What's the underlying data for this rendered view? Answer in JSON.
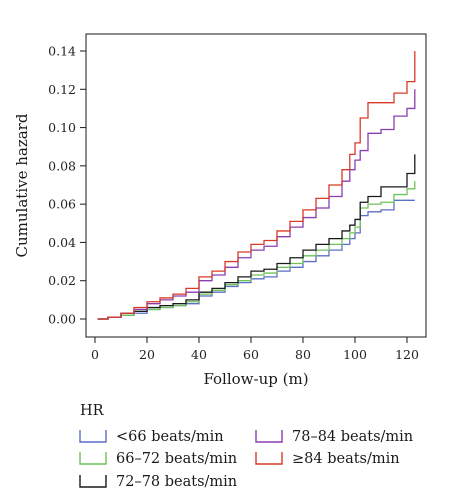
{
  "chart_data": {
    "type": "line",
    "step": true,
    "xlabel": "Follow-up (m)",
    "ylabel": "Cumulative hazard",
    "xlim": [
      0,
      125
    ],
    "ylim": [
      0,
      0.14
    ],
    "xticks": [
      0,
      20,
      40,
      60,
      80,
      100,
      120
    ],
    "yticks": [
      0.0,
      0.02,
      0.04,
      0.06,
      0.08,
      0.1,
      0.12,
      0.14
    ],
    "ytick_labels": [
      "0.00",
      "0.02",
      "0.04",
      "0.06",
      "0.08",
      "0.10",
      "0.12",
      "0.14"
    ],
    "grid": false,
    "legend": {
      "title": "HR",
      "placement": "bottom"
    },
    "series": [
      {
        "name": "<66 beats/min",
        "color": "#5b6fc6",
        "x": [
          1,
          5,
          10,
          15,
          20,
          25,
          30,
          35,
          40,
          45,
          50,
          55,
          60,
          65,
          70,
          75,
          80,
          85,
          90,
          95,
          98,
          100,
          102,
          105,
          110,
          115,
          120,
          123
        ],
        "y": [
          0,
          0.001,
          0.002,
          0.003,
          0.005,
          0.006,
          0.007,
          0.008,
          0.012,
          0.014,
          0.017,
          0.019,
          0.021,
          0.022,
          0.025,
          0.027,
          0.03,
          0.033,
          0.036,
          0.039,
          0.042,
          0.045,
          0.054,
          0.056,
          0.057,
          0.062,
          0.062,
          0.062
        ]
      },
      {
        "name": "66–72 beats/min",
        "color": "#6fc25a",
        "x": [
          1,
          5,
          10,
          15,
          20,
          25,
          30,
          35,
          40,
          45,
          50,
          55,
          60,
          65,
          70,
          75,
          80,
          85,
          90,
          95,
          98,
          100,
          102,
          105,
          110,
          115,
          120,
          123
        ],
        "y": [
          0,
          0.001,
          0.002,
          0.004,
          0.005,
          0.006,
          0.007,
          0.009,
          0.013,
          0.015,
          0.018,
          0.02,
          0.023,
          0.024,
          0.027,
          0.029,
          0.033,
          0.036,
          0.039,
          0.042,
          0.045,
          0.048,
          0.058,
          0.06,
          0.061,
          0.065,
          0.068,
          0.072
        ]
      },
      {
        "name": "72–78 beats/min",
        "color": "#1a1a1a",
        "x": [
          1,
          5,
          10,
          15,
          20,
          25,
          30,
          35,
          40,
          45,
          50,
          55,
          60,
          65,
          70,
          75,
          80,
          85,
          90,
          95,
          98,
          100,
          102,
          105,
          110,
          115,
          120,
          123
        ],
        "y": [
          0,
          0.001,
          0.003,
          0.004,
          0.006,
          0.007,
          0.008,
          0.01,
          0.014,
          0.016,
          0.019,
          0.022,
          0.025,
          0.026,
          0.029,
          0.032,
          0.036,
          0.039,
          0.042,
          0.046,
          0.049,
          0.052,
          0.061,
          0.064,
          0.069,
          0.069,
          0.076,
          0.086
        ]
      },
      {
        "name": "78–84 beats/min",
        "color": "#8a3fb0",
        "x": [
          1,
          5,
          10,
          15,
          20,
          25,
          30,
          35,
          40,
          45,
          50,
          55,
          60,
          65,
          70,
          75,
          80,
          85,
          90,
          95,
          98,
          100,
          102,
          105,
          110,
          115,
          120,
          123
        ],
        "y": [
          0,
          0.001,
          0.003,
          0.005,
          0.008,
          0.01,
          0.012,
          0.014,
          0.02,
          0.023,
          0.027,
          0.032,
          0.036,
          0.038,
          0.043,
          0.048,
          0.053,
          0.058,
          0.064,
          0.072,
          0.078,
          0.083,
          0.088,
          0.097,
          0.099,
          0.106,
          0.11,
          0.12
        ]
      },
      {
        "name": "≥84 beats/min",
        "color": "#d83a28",
        "x": [
          1,
          5,
          10,
          15,
          20,
          25,
          30,
          35,
          40,
          45,
          50,
          55,
          60,
          65,
          70,
          75,
          80,
          85,
          90,
          95,
          98,
          100,
          102,
          105,
          110,
          115,
          120,
          123
        ],
        "y": [
          0,
          0.001,
          0.003,
          0.006,
          0.009,
          0.011,
          0.013,
          0.016,
          0.022,
          0.025,
          0.03,
          0.035,
          0.039,
          0.041,
          0.046,
          0.051,
          0.057,
          0.063,
          0.07,
          0.078,
          0.086,
          0.092,
          0.105,
          0.113,
          0.113,
          0.118,
          0.124,
          0.14
        ]
      }
    ]
  }
}
